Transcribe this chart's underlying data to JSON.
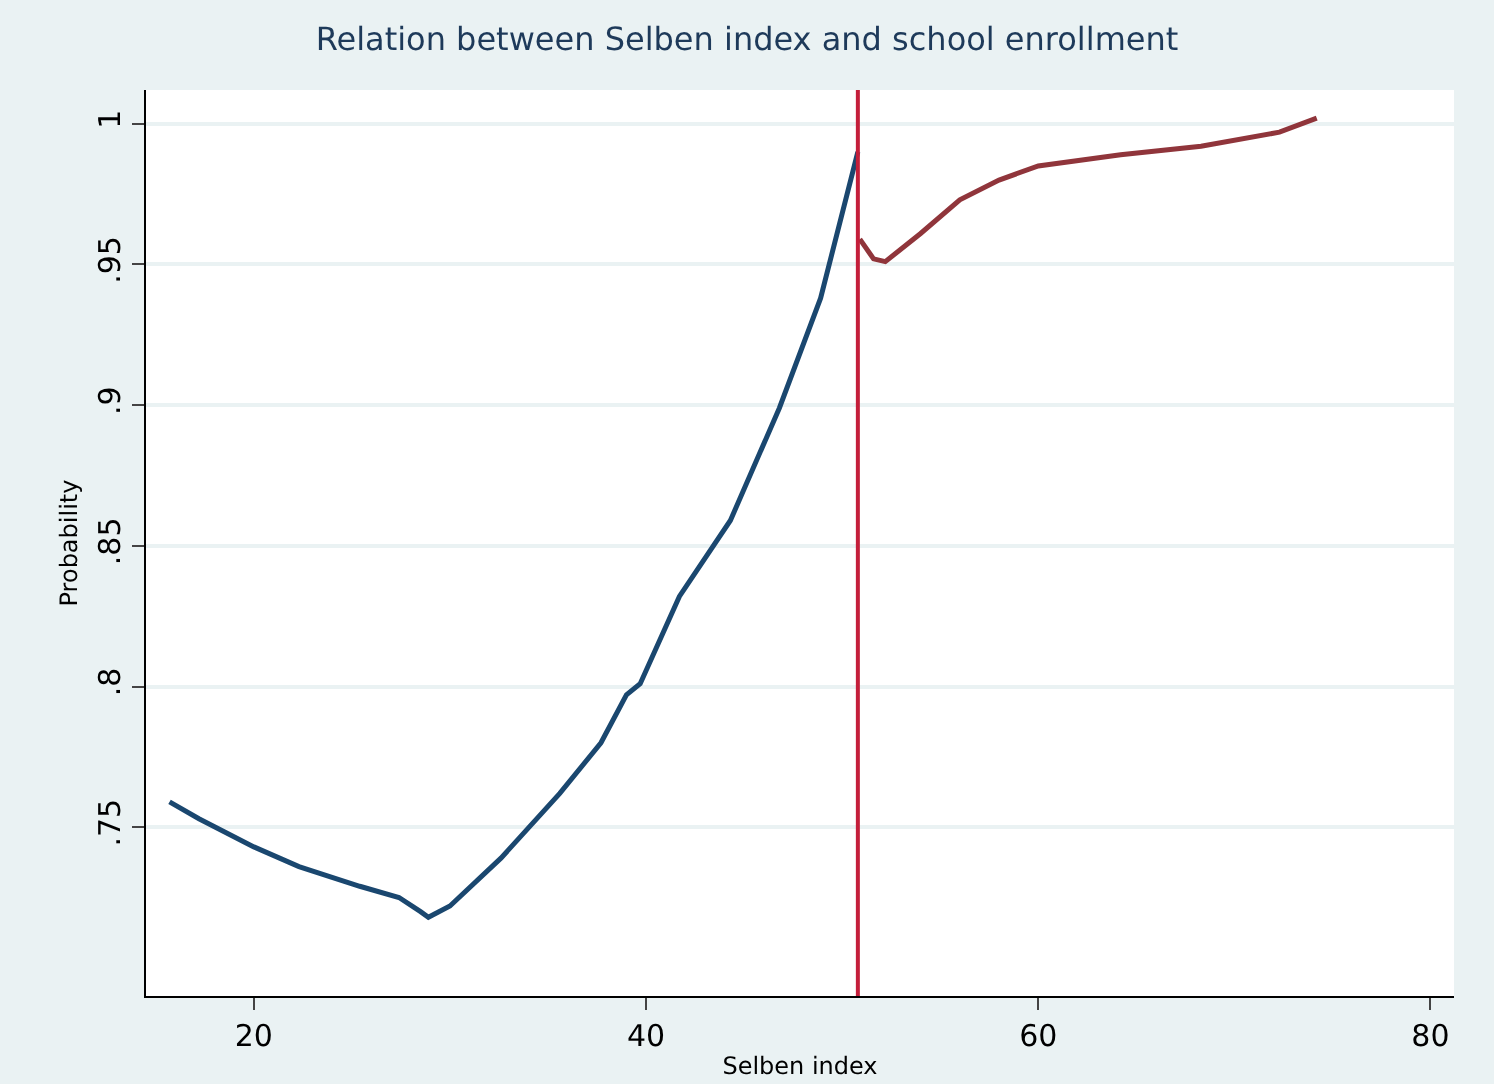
{
  "chart_data": {
    "type": "line",
    "title": "Relation between Selben index and school enrollment",
    "xlabel": "Selben index",
    "ylabel": "Probability",
    "series": [
      {
        "color": "#1a476f",
        "x": [
          15.7,
          17.2,
          20,
          22.3,
          25.4,
          27.4,
          28.5,
          28.9,
          30,
          32.6,
          35.6,
          37.7,
          39,
          39.7,
          41.7,
          44.3,
          46.8,
          48.9,
          50.8
        ],
        "values": [
          0.759,
          0.753,
          0.743,
          0.736,
          0.729,
          0.725,
          0.72,
          0.718,
          0.722,
          0.739,
          0.762,
          0.78,
          0.797,
          0.801,
          0.832,
          0.859,
          0.899,
          0.938,
          0.99
        ]
      },
      {
        "color": "#90353b",
        "x": [
          50.9,
          51.6,
          52.2,
          54,
          56,
          58,
          60,
          64.2,
          68.3,
          72.3,
          74.2
        ],
        "values": [
          0.959,
          0.952,
          0.951,
          0.961,
          0.973,
          0.98,
          0.985,
          0.989,
          0.992,
          0.997,
          1.002
        ]
      }
    ],
    "xlim": [
      14.5,
      81.2
    ],
    "xticks": [
      20,
      40,
      60,
      80
    ],
    "ylim": [
      0.69,
      1.012
    ],
    "yticks": [
      {
        "value": 0.75,
        "label": ".75"
      },
      {
        "value": 0.8,
        "label": ".8"
      },
      {
        "value": 0.85,
        "label": ".85"
      },
      {
        "value": 0.9,
        "label": ".9"
      },
      {
        "value": 0.95,
        "label": ".95"
      },
      {
        "value": 1,
        "label": "1"
      }
    ],
    "grid": "y",
    "marker": "none",
    "line_style": "solid",
    "ref_lines": [
      {
        "axis": "x",
        "value": 50.8,
        "color": "#c41e3a"
      }
    ]
  }
}
